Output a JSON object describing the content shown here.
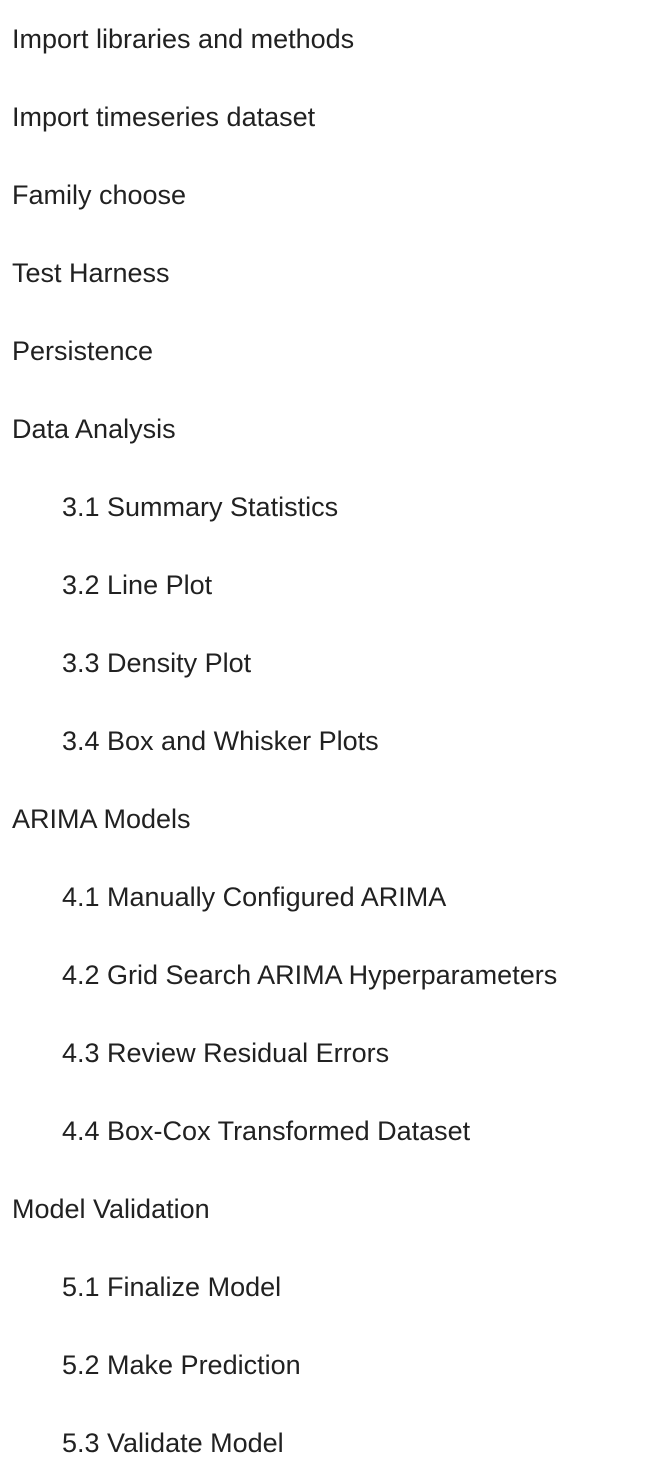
{
  "toc": {
    "items": [
      {
        "label": "Import libraries and methods",
        "level": 1
      },
      {
        "label": "Import timeseries dataset",
        "level": 1
      },
      {
        "label": "Family choose",
        "level": 1
      },
      {
        "label": "Test Harness",
        "level": 1
      },
      {
        "label": "Persistence",
        "level": 1
      },
      {
        "label": "Data Analysis",
        "level": 1
      },
      {
        "label": "3.1 Summary Statistics",
        "level": 2
      },
      {
        "label": "3.2 Line Plot",
        "level": 2
      },
      {
        "label": "3.3 Density Plot",
        "level": 2
      },
      {
        "label": "3.4 Box and Whisker Plots",
        "level": 2
      },
      {
        "label": "ARIMA Models",
        "level": 1
      },
      {
        "label": "4.1 Manually Configured ARIMA",
        "level": 2
      },
      {
        "label": "4.2 Grid Search ARIMA Hyperparameters",
        "level": 2
      },
      {
        "label": "4.3 Review Residual Errors",
        "level": 2
      },
      {
        "label": "4.4 Box-Cox Transformed Dataset",
        "level": 2
      },
      {
        "label": "Model Validation",
        "level": 1
      },
      {
        "label": "5.1 Finalize Model",
        "level": 2
      },
      {
        "label": "5.2 Make Prediction",
        "level": 2
      },
      {
        "label": "5.3 Validate Model",
        "level": 2
      }
    ]
  }
}
